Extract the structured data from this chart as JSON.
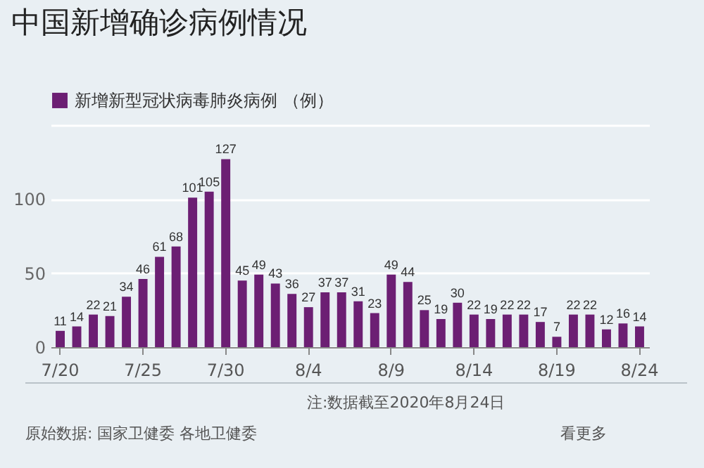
{
  "chart_data": {
    "type": "bar",
    "title": "中国新增确诊病例情况",
    "categories": [
      "7/20",
      null,
      null,
      null,
      null,
      "7/25",
      null,
      null,
      null,
      null,
      "7/30",
      null,
      null,
      null,
      null,
      "8/4",
      null,
      null,
      null,
      null,
      "8/9",
      null,
      null,
      null,
      null,
      "8/14",
      null,
      null,
      null,
      null,
      "8/19",
      null,
      null,
      null,
      null,
      "8/24"
    ],
    "series": [
      {
        "name": "新增新型冠状病毒肺炎病例 （例）",
        "color": "#6c1f73",
        "values": [
          11,
          14,
          22,
          21,
          34,
          46,
          61,
          68,
          101,
          105,
          127,
          45,
          49,
          43,
          36,
          27,
          37,
          37,
          31,
          23,
          49,
          44,
          25,
          19,
          30,
          22,
          19,
          22,
          22,
          17,
          7,
          22,
          22,
          12,
          16,
          14
        ]
      }
    ],
    "ylim": [
      0,
      150
    ],
    "yticks": [
      0,
      50,
      100,
      {
        "value": 150,
        "label": null
      }
    ],
    "grid": "y",
    "legend": "top left",
    "data_labels": true,
    "annotations": [
      "注:数据截至2020年8月24日",
      "原始数据: 国家卫健委 各地卫健委",
      "看更多"
    ]
  }
}
